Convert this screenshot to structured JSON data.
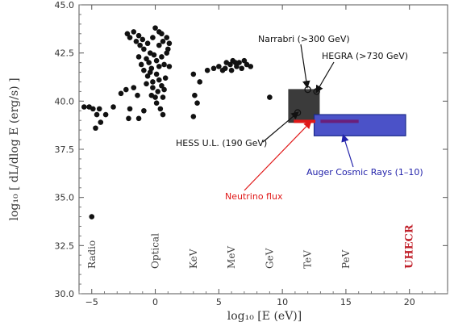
{
  "chart_data": {
    "type": "scatter",
    "title": "",
    "xlabel": "log₁₀ [E (eV)]",
    "ylabel": "log₁₀ [ dL/dlog E  (erg/s) ]",
    "xlim": [
      -6,
      23
    ],
    "ylim": [
      30,
      45
    ],
    "x_ticks": [
      -5,
      0,
      5,
      10,
      15,
      20
    ],
    "x_tick_labels": [
      "−5",
      "0",
      "5",
      "10",
      "15",
      "20"
    ],
    "y_ticks": [
      30,
      32.5,
      35,
      37.5,
      40,
      42.5,
      45
    ],
    "y_tick_labels": [
      "30.0",
      "32.5",
      "35.0",
      "37.5",
      "40.0",
      "42.5",
      "45.0"
    ],
    "grid": false,
    "energy_bands": [
      {
        "label": "Radio",
        "x": -5
      },
      {
        "label": "Optical",
        "x": 0
      },
      {
        "label": "KeV",
        "x": 3
      },
      {
        "label": "MeV",
        "x": 6
      },
      {
        "label": "GeV",
        "x": 9
      },
      {
        "label": "TeV",
        "x": 12
      },
      {
        "label": "PeV",
        "x": 15
      },
      {
        "label": "UHECR",
        "x": 20,
        "color": "#c0202a"
      }
    ],
    "series": [
      {
        "color": "#111111",
        "points": [
          [
            -5,
            34.0
          ],
          [
            -5.6,
            39.7
          ],
          [
            -5.2,
            39.7
          ],
          [
            -4.9,
            39.6
          ],
          [
            -4.6,
            39.3
          ],
          [
            -4.4,
            39.6
          ],
          [
            -4.7,
            38.6
          ],
          [
            -4.3,
            38.9
          ],
          [
            -3.9,
            39.3
          ],
          [
            -3.3,
            39.7
          ],
          [
            -2.7,
            40.4
          ],
          [
            -2.3,
            40.6
          ],
          [
            -2.0,
            39.6
          ],
          [
            -1.7,
            40.7
          ],
          [
            -1.4,
            40.3
          ],
          [
            -0.9,
            39.5
          ],
          [
            -2.1,
            39.1
          ],
          [
            -1.3,
            39.1
          ],
          [
            -2.2,
            43.5
          ],
          [
            -2.0,
            43.3
          ],
          [
            -1.7,
            43.6
          ],
          [
            -1.5,
            43.1
          ],
          [
            -1.3,
            43.4
          ],
          [
            -1.2,
            42.9
          ],
          [
            -1.0,
            43.2
          ],
          [
            -0.9,
            42.7
          ],
          [
            -0.6,
            43.0
          ],
          [
            -0.4,
            42.5
          ],
          [
            -0.2,
            43.3
          ],
          [
            0.0,
            43.8
          ],
          [
            0.3,
            43.6
          ],
          [
            0.5,
            43.5
          ],
          [
            0.6,
            43.1
          ],
          [
            0.3,
            42.9
          ],
          [
            -1.3,
            42.3
          ],
          [
            -1.1,
            41.9
          ],
          [
            -0.9,
            41.6
          ],
          [
            -0.7,
            42.2
          ],
          [
            -0.5,
            42.0
          ],
          [
            -0.3,
            41.7
          ],
          [
            -0.1,
            42.4
          ],
          [
            0.1,
            42.1
          ],
          [
            0.3,
            41.8
          ],
          [
            0.5,
            42.3
          ],
          [
            0.7,
            41.9
          ],
          [
            0.9,
            42.5
          ],
          [
            -0.6,
            41.3
          ],
          [
            -0.2,
            41.0
          ],
          [
            0.1,
            41.4
          ],
          [
            0.3,
            41.1
          ],
          [
            0.5,
            40.8
          ],
          [
            0.2,
            40.5
          ],
          [
            0.6,
            40.2
          ],
          [
            0.1,
            39.9
          ],
          [
            0.4,
            39.6
          ],
          [
            0.6,
            39.3
          ],
          [
            -0.2,
            40.7
          ],
          [
            0.0,
            40.2
          ],
          [
            0.7,
            40.6
          ],
          [
            0.8,
            41.2
          ],
          [
            -0.4,
            41.5
          ],
          [
            1.1,
            41.8
          ],
          [
            1.0,
            42.7
          ],
          [
            0.9,
            43.3
          ],
          [
            1.1,
            43.0
          ],
          [
            -0.7,
            40.9
          ],
          [
            -0.3,
            40.3
          ],
          [
            3.0,
            41.4
          ],
          [
            3.1,
            40.3
          ],
          [
            3.3,
            39.9
          ],
          [
            3.0,
            39.2
          ],
          [
            3.5,
            41.0
          ],
          [
            4.1,
            41.6
          ],
          [
            4.6,
            41.7
          ],
          [
            5.0,
            41.8
          ],
          [
            5.3,
            41.6
          ],
          [
            5.6,
            42.0
          ],
          [
            5.9,
            41.9
          ],
          [
            6.1,
            42.1
          ],
          [
            6.4,
            41.8
          ],
          [
            6.6,
            42.0
          ],
          [
            6.8,
            41.7
          ],
          [
            7.0,
            42.1
          ],
          [
            7.2,
            41.9
          ],
          [
            5.5,
            41.7
          ],
          [
            6.0,
            41.6
          ],
          [
            7.5,
            41.8
          ],
          [
            6.3,
            42.0
          ],
          [
            9.0,
            40.2
          ]
        ]
      }
    ],
    "boxes": [
      {
        "x0": 10.5,
        "x1": 12.9,
        "y0": 38.9,
        "y1": 40.6,
        "color": "#3b3b3b"
      },
      {
        "x0": 12.5,
        "x1": 19.7,
        "y0": 38.2,
        "y1": 39.3,
        "color": "#4b52c8",
        "edge": "#1a2a8a"
      }
    ],
    "lines": [
      {
        "x0": 13.0,
        "x1": 16.0,
        "y": 38.95,
        "color": "#6a1f7a"
      },
      {
        "x0": 10.9,
        "x1": 12.6,
        "y": 38.95,
        "color": "#e01818"
      }
    ],
    "open_markers": [
      [
        11.2,
        39.4
      ],
      [
        12.0,
        40.6
      ],
      [
        12.7,
        40.5
      ]
    ],
    "annotations": [
      {
        "text": "Narrabri (>300 GeV)",
        "color": "#111111",
        "arrow_to": [
          11.95,
          40.75
        ]
      },
      {
        "text": "HEGRA (>730 GeV)",
        "color": "#111111",
        "arrow_to": [
          12.7,
          40.5
        ]
      },
      {
        "text": "HESS U.L. (190 GeV)",
        "color": "#111111",
        "arrow_to": [
          11.2,
          39.4
        ]
      },
      {
        "text": "Neutrino flux",
        "color": "#e01818",
        "arrow_to": [
          12.2,
          38.9
        ]
      },
      {
        "text": "Auger Cosmic Rays (1–10)",
        "color": "#2222aa",
        "arrow_to": [
          14.8,
          38.2
        ]
      }
    ]
  }
}
